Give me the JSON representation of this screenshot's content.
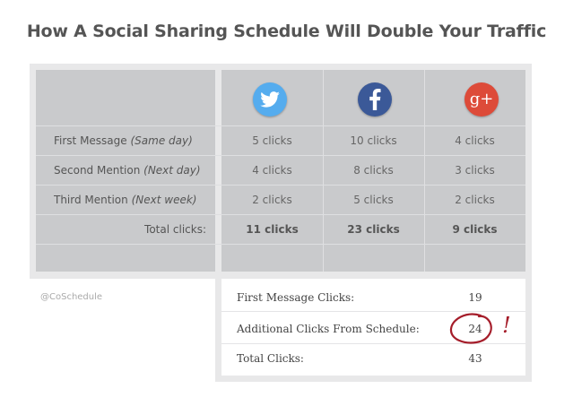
{
  "title": "How A Social Sharing Schedule Will Double Your Traffic",
  "networks": [
    {
      "name": "twitter-icon",
      "color": "#55acee"
    },
    {
      "name": "facebook-icon",
      "color": "#3b5998"
    },
    {
      "name": "google-plus-icon",
      "color": "#dd4b39",
      "glyph": "g+"
    }
  ],
  "rows": [
    {
      "label": "First Message",
      "note": "(Same day)",
      "values": [
        "5 clicks",
        "10 clicks",
        "4 clicks"
      ]
    },
    {
      "label": "Second Mention",
      "note": "(Next day)",
      "values": [
        "4 clicks",
        "8 clicks",
        "3 clicks"
      ]
    },
    {
      "label": "Third Mention",
      "note": "(Next week)",
      "values": [
        "2 clicks",
        "5 clicks",
        "2 clicks"
      ]
    }
  ],
  "totals": {
    "label": "Total clicks:",
    "values": [
      "11 clicks",
      "23 clicks",
      "9 clicks"
    ]
  },
  "handle": "@CoSchedule",
  "summary": [
    {
      "label": "First Message Clicks:",
      "value": "19"
    },
    {
      "label": "Additional Clicks From Schedule:",
      "value": "24",
      "exclaim": "!"
    },
    {
      "label": "Total Clicks:",
      "value": "43"
    }
  ]
}
